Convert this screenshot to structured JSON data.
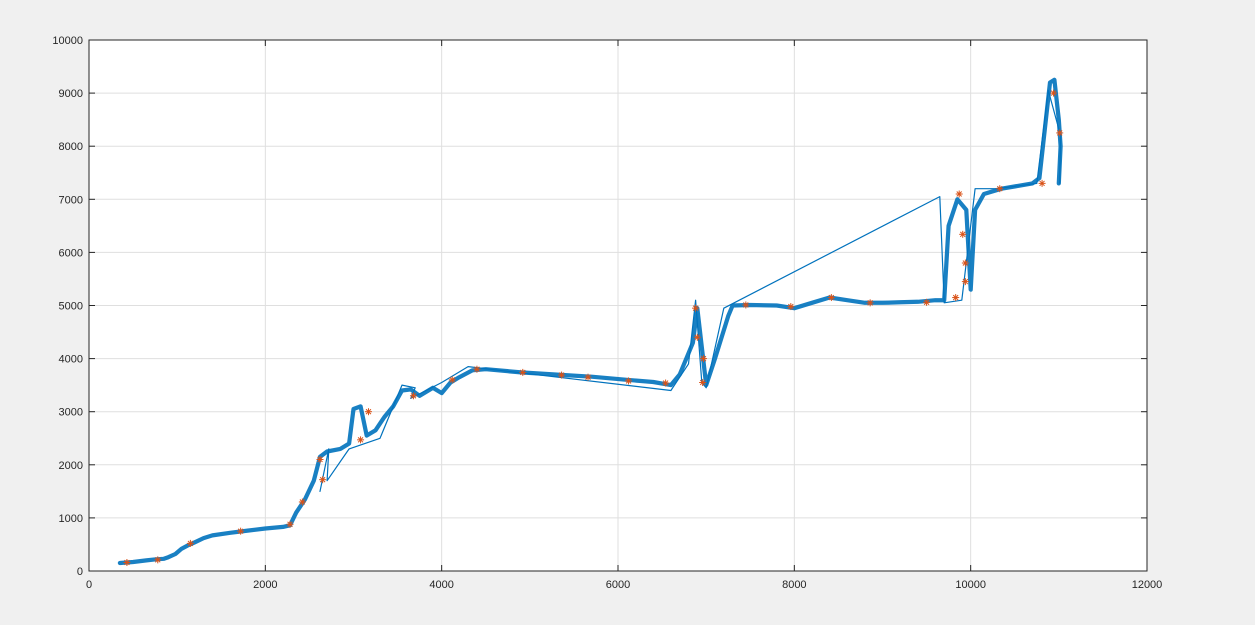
{
  "chart_data": {
    "type": "line",
    "xlim": [
      0,
      12000
    ],
    "ylim": [
      0,
      10000
    ],
    "xticks": [
      0,
      2000,
      4000,
      6000,
      8000,
      10000,
      12000
    ],
    "yticks": [
      0,
      1000,
      2000,
      3000,
      4000,
      5000,
      6000,
      7000,
      8000,
      9000,
      10000
    ],
    "grid": true,
    "colors": {
      "trajectory": "#0072BD",
      "markers": "#D95319",
      "background": "#f0f0f0",
      "axes_bg": "#ffffff"
    },
    "series": [
      {
        "style": "line",
        "band_width": 80,
        "points": [
          [
            350,
            150
          ],
          [
            500,
            170
          ],
          [
            650,
            200
          ],
          [
            760,
            220
          ],
          [
            850,
            230
          ],
          [
            900,
            260
          ],
          [
            980,
            320
          ],
          [
            1050,
            420
          ],
          [
            1120,
            480
          ],
          [
            1200,
            540
          ],
          [
            1300,
            620
          ],
          [
            1400,
            670
          ],
          [
            1600,
            720
          ],
          [
            1800,
            760
          ],
          [
            2000,
            800
          ],
          [
            2200,
            830
          ],
          [
            2280,
            860
          ],
          [
            2350,
            1100
          ],
          [
            2450,
            1350
          ],
          [
            2550,
            1700
          ],
          [
            2620,
            2150
          ],
          [
            2700,
            2250
          ],
          [
            2850,
            2300
          ],
          [
            2950,
            2400
          ],
          [
            3000,
            3050
          ],
          [
            3080,
            3100
          ],
          [
            3150,
            2550
          ],
          [
            3250,
            2650
          ],
          [
            3350,
            2900
          ],
          [
            3450,
            3100
          ],
          [
            3550,
            3400
          ],
          [
            3650,
            3420
          ],
          [
            3750,
            3300
          ],
          [
            3900,
            3450
          ],
          [
            4000,
            3350
          ],
          [
            4100,
            3550
          ],
          [
            4200,
            3650
          ],
          [
            4350,
            3780
          ],
          [
            4500,
            3800
          ],
          [
            4900,
            3740
          ],
          [
            5400,
            3690
          ],
          [
            5700,
            3660
          ],
          [
            6100,
            3600
          ],
          [
            6400,
            3560
          ],
          [
            6600,
            3500
          ],
          [
            6700,
            3700
          ],
          [
            6850,
            4300
          ],
          [
            6900,
            4950
          ],
          [
            7000,
            3500
          ],
          [
            7100,
            4000
          ],
          [
            7250,
            4800
          ],
          [
            7300,
            5000
          ],
          [
            7500,
            5010
          ],
          [
            7800,
            5000
          ],
          [
            8000,
            4950
          ],
          [
            8200,
            5050
          ],
          [
            8400,
            5150
          ],
          [
            8600,
            5100
          ],
          [
            8800,
            5050
          ],
          [
            9000,
            5050
          ],
          [
            9200,
            5060
          ],
          [
            9400,
            5070
          ],
          [
            9600,
            5100
          ],
          [
            9700,
            5100
          ],
          [
            9750,
            6500
          ],
          [
            9850,
            7000
          ],
          [
            9950,
            6800
          ],
          [
            10000,
            5300
          ],
          [
            10050,
            6800
          ],
          [
            10150,
            7100
          ],
          [
            10350,
            7200
          ],
          [
            10700,
            7300
          ],
          [
            10780,
            7400
          ],
          [
            10900,
            9200
          ],
          [
            10950,
            9250
          ],
          [
            11000,
            8500
          ],
          [
            11020,
            8000
          ],
          [
            11000,
            7300
          ]
        ]
      },
      {
        "style": "line",
        "band_width": 0,
        "points": [
          [
            2620,
            1500
          ],
          [
            2720,
            2300
          ],
          [
            2700,
            1700
          ],
          [
            2950,
            2300
          ],
          [
            3300,
            2500
          ],
          [
            3550,
            3500
          ],
          [
            3700,
            3450
          ],
          [
            3650,
            3250
          ],
          [
            4000,
            3550
          ],
          [
            4300,
            3850
          ],
          [
            6600,
            3400
          ],
          [
            6800,
            3900
          ],
          [
            6880,
            5100
          ],
          [
            6950,
            3550
          ],
          [
            7000,
            3450
          ],
          [
            7200,
            4950
          ],
          [
            9650,
            7050
          ],
          [
            9700,
            5050
          ],
          [
            9900,
            5100
          ],
          [
            10050,
            7200
          ],
          [
            10300,
            7200
          ],
          [
            10750,
            7300
          ],
          [
            10880,
            9050
          ],
          [
            11020,
            8200
          ],
          [
            11010,
            7300
          ]
        ]
      },
      {
        "style": "marker",
        "points": [
          [
            430,
            160
          ],
          [
            780,
            210
          ],
          [
            1150,
            520
          ],
          [
            1720,
            750
          ],
          [
            2280,
            880
          ],
          [
            2420,
            1300
          ],
          [
            2620,
            2100
          ],
          [
            2650,
            1720
          ],
          [
            3080,
            2470
          ],
          [
            3170,
            3000
          ],
          [
            3680,
            3300
          ],
          [
            4120,
            3600
          ],
          [
            4400,
            3800
          ],
          [
            4920,
            3740
          ],
          [
            5360,
            3690
          ],
          [
            5660,
            3650
          ],
          [
            6120,
            3580
          ],
          [
            6540,
            3540
          ],
          [
            6880,
            4950
          ],
          [
            6900,
            4400
          ],
          [
            6960,
            3550
          ],
          [
            6970,
            4000
          ],
          [
            7450,
            5010
          ],
          [
            7960,
            4980
          ],
          [
            8420,
            5150
          ],
          [
            8860,
            5050
          ],
          [
            9500,
            5060
          ],
          [
            9830,
            5150
          ],
          [
            9870,
            7100
          ],
          [
            9910,
            6340
          ],
          [
            9940,
            5800
          ],
          [
            9940,
            5450
          ],
          [
            10330,
            7200
          ],
          [
            10810,
            7300
          ],
          [
            10940,
            9000
          ],
          [
            11010,
            8250
          ]
        ]
      }
    ]
  }
}
